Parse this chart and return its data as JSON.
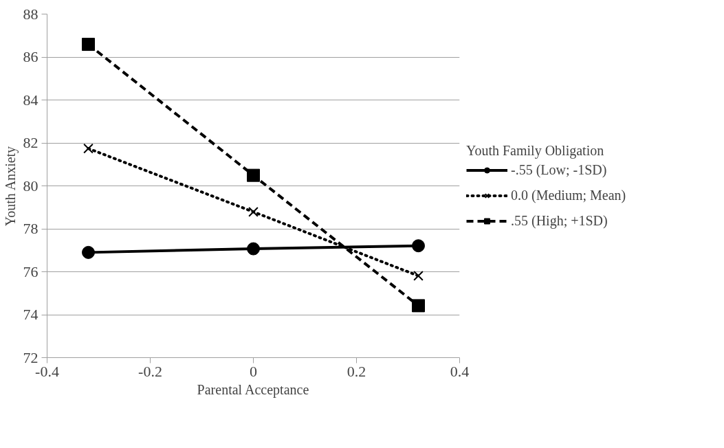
{
  "chart_data": {
    "type": "line",
    "xlabel": "Parental Acceptance",
    "ylabel": "Youth Anxiety",
    "legend_title": "Youth Family Obligation",
    "x": [
      -0.32,
      0,
      0.32
    ],
    "series": [
      {
        "name": "-.55 (Low; -1SD)",
        "color": "#000000",
        "values": [
          76.9,
          77.07,
          77.21
        ],
        "marker": "circle",
        "line_style": "solid"
      },
      {
        "name": "0.0 (Medium; Mean)",
        "color": "#000000",
        "values": [
          81.74,
          78.79,
          75.81
        ],
        "marker": "cross",
        "line_style": "dotted"
      },
      {
        "name": ".55 (High; +1SD)",
        "color": "#000000",
        "values": [
          86.59,
          80.49,
          74.42
        ],
        "marker": "square",
        "line_style": "dashed"
      }
    ],
    "xlim": [
      -0.4,
      0.4
    ],
    "xticks": [
      -0.4,
      -0.2,
      0,
      0.2,
      0.4
    ],
    "ylim": [
      72,
      88
    ],
    "yticks": [
      72,
      74,
      76,
      78,
      80,
      82,
      84,
      86,
      88
    ],
    "grid": "y",
    "legend": "right"
  }
}
